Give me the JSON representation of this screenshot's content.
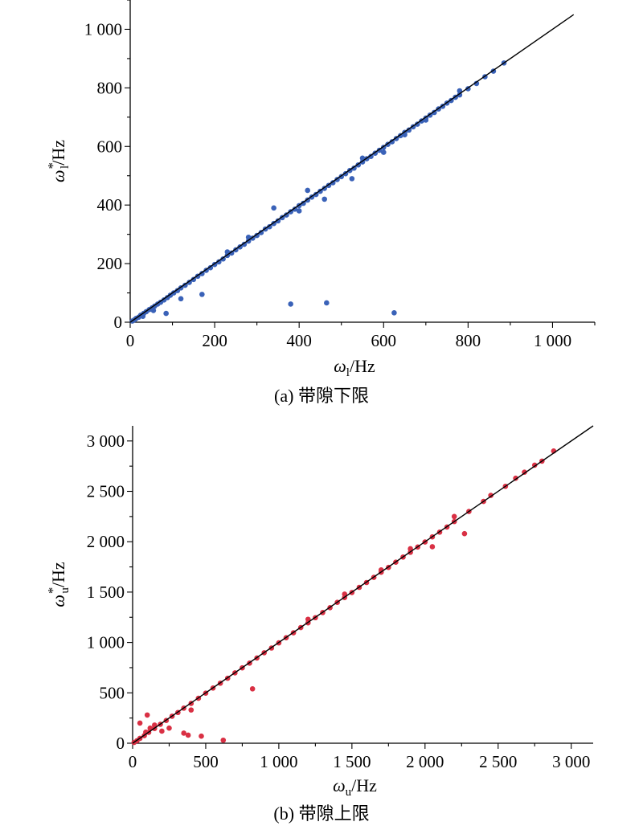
{
  "chart_data": [
    {
      "type": "scatter",
      "caption": "(a) 带隙下限",
      "xlabel": {
        "symbol": "ω",
        "sub": "l",
        "sup": "",
        "unit": "/Hz"
      },
      "ylabel": {
        "symbol": "ω",
        "sub": "l",
        "sup": "*",
        "unit": "/Hz"
      },
      "xlim": [
        0,
        1100
      ],
      "ylim": [
        0,
        1100
      ],
      "xticks": [
        0,
        200,
        400,
        600,
        800,
        1000
      ],
      "xtick_labels": [
        "0",
        "200",
        "400",
        "600",
        "800",
        "1 000"
      ],
      "yticks": [
        0,
        200,
        400,
        600,
        800,
        1000
      ],
      "ytick_labels": [
        "0",
        "200",
        "400",
        "600",
        "800",
        "1 000"
      ],
      "grid": false,
      "point_color": "#3a62b8",
      "fit_line": {
        "x": [
          0,
          1050
        ],
        "y": [
          0,
          1050
        ],
        "color": "#000000"
      },
      "points": [
        [
          5,
          4
        ],
        [
          10,
          8
        ],
        [
          14,
          13
        ],
        [
          20,
          17
        ],
        [
          25,
          24
        ],
        [
          32,
          30
        ],
        [
          38,
          36
        ],
        [
          45,
          43
        ],
        [
          52,
          49
        ],
        [
          58,
          55
        ],
        [
          65,
          62
        ],
        [
          72,
          68
        ],
        [
          80,
          76
        ],
        [
          88,
          84
        ],
        [
          95,
          92
        ],
        [
          103,
          100
        ],
        [
          112,
          108
        ],
        [
          120,
          117
        ],
        [
          130,
          126
        ],
        [
          140,
          136
        ],
        [
          150,
          146
        ],
        [
          160,
          157
        ],
        [
          170,
          166
        ],
        [
          180,
          177
        ],
        [
          190,
          186
        ],
        [
          200,
          197
        ],
        [
          210,
          206
        ],
        [
          220,
          216
        ],
        [
          230,
          228
        ],
        [
          240,
          236
        ],
        [
          250,
          247
        ],
        [
          260,
          257
        ],
        [
          270,
          266
        ],
        [
          280,
          277
        ],
        [
          290,
          287
        ],
        [
          300,
          296
        ],
        [
          310,
          306
        ],
        [
          320,
          318
        ],
        [
          330,
          326
        ],
        [
          340,
          337
        ],
        [
          350,
          346
        ],
        [
          360,
          357
        ],
        [
          370,
          366
        ],
        [
          380,
          377
        ],
        [
          390,
          386
        ],
        [
          400,
          398
        ],
        [
          410,
          406
        ],
        [
          420,
          417
        ],
        [
          430,
          427
        ],
        [
          440,
          436
        ],
        [
          450,
          447
        ],
        [
          460,
          457
        ],
        [
          470,
          467
        ],
        [
          480,
          476
        ],
        [
          490,
          487
        ],
        [
          500,
          497
        ],
        [
          510,
          507
        ],
        [
          520,
          518
        ],
        [
          530,
          526
        ],
        [
          540,
          537
        ],
        [
          550,
          547
        ],
        [
          560,
          558
        ],
        [
          570,
          566
        ],
        [
          580,
          577
        ],
        [
          590,
          587
        ],
        [
          600,
          597
        ],
        [
          610,
          607
        ],
        [
          620,
          616
        ],
        [
          630,
          627
        ],
        [
          640,
          637
        ],
        [
          650,
          648
        ],
        [
          660,
          656
        ],
        [
          670,
          667
        ],
        [
          680,
          676
        ],
        [
          690,
          687
        ],
        [
          700,
          697
        ],
        [
          710,
          707
        ],
        [
          720,
          716
        ],
        [
          730,
          728
        ],
        [
          740,
          737
        ],
        [
          750,
          748
        ],
        [
          760,
          757
        ],
        [
          770,
          768
        ],
        [
          780,
          776
        ],
        [
          800,
          797
        ],
        [
          820,
          815
        ],
        [
          840,
          838
        ],
        [
          860,
          857
        ],
        [
          885,
          885
        ],
        [
          30,
          20
        ],
        [
          55,
          40
        ],
        [
          85,
          30
        ],
        [
          120,
          80
        ],
        [
          170,
          95
        ],
        [
          380,
          62
        ],
        [
          465,
          66
        ],
        [
          625,
          32
        ],
        [
          460,
          420
        ],
        [
          525,
          490
        ],
        [
          340,
          390
        ],
        [
          600,
          580
        ],
        [
          230,
          240
        ],
        [
          700,
          690
        ],
        [
          280,
          290
        ],
        [
          420,
          450
        ],
        [
          550,
          560
        ],
        [
          650,
          640
        ],
        [
          780,
          790
        ],
        [
          400,
          380
        ]
      ]
    },
    {
      "type": "scatter",
      "caption": "(b) 带隙上限",
      "xlabel": {
        "symbol": "ω",
        "sub": "u",
        "sup": "",
        "unit": "/Hz"
      },
      "ylabel": {
        "symbol": "ω",
        "sub": "u",
        "sup": "*",
        "unit": "/Hz"
      },
      "xlim": [
        0,
        3150
      ],
      "ylim": [
        0,
        3150
      ],
      "xticks": [
        0,
        500,
        1000,
        1500,
        2000,
        2500,
        3000
      ],
      "xtick_labels": [
        "0",
        "500",
        "1 000",
        "1 500",
        "2 000",
        "2 500",
        "3 000"
      ],
      "yticks": [
        0,
        500,
        1000,
        1500,
        2000,
        2500,
        3000
      ],
      "ytick_labels": [
        "0",
        "500",
        "1 000",
        "1 500",
        "2 000",
        "2 500",
        "3 000"
      ],
      "grid": false,
      "point_color": "#d93044",
      "fit_line": {
        "x": [
          0,
          3150
        ],
        "y": [
          0,
          3150
        ],
        "color": "#000000"
      },
      "points": [
        [
          10,
          8
        ],
        [
          30,
          25
        ],
        [
          50,
          48
        ],
        [
          80,
          75
        ],
        [
          110,
          108
        ],
        [
          150,
          146
        ],
        [
          190,
          188
        ],
        [
          230,
          226
        ],
        [
          270,
          268
        ],
        [
          310,
          305
        ],
        [
          350,
          348
        ],
        [
          400,
          395
        ],
        [
          450,
          446
        ],
        [
          500,
          497
        ],
        [
          550,
          548
        ],
        [
          600,
          596
        ],
        [
          650,
          645
        ],
        [
          700,
          698
        ],
        [
          750,
          748
        ],
        [
          800,
          795
        ],
        [
          850,
          846
        ],
        [
          900,
          898
        ],
        [
          950,
          945
        ],
        [
          1000,
          996
        ],
        [
          1050,
          1047
        ],
        [
          1100,
          1096
        ],
        [
          1150,
          1148
        ],
        [
          1200,
          1195
        ],
        [
          1250,
          1246
        ],
        [
          1300,
          1297
        ],
        [
          1350,
          1345
        ],
        [
          1400,
          1398
        ],
        [
          1450,
          1446
        ],
        [
          1500,
          1496
        ],
        [
          1550,
          1547
        ],
        [
          1600,
          1595
        ],
        [
          1650,
          1646
        ],
        [
          1700,
          1697
        ],
        [
          1750,
          1745
        ],
        [
          1800,
          1797
        ],
        [
          1850,
          1848
        ],
        [
          1900,
          1895
        ],
        [
          1950,
          1947
        ],
        [
          2000,
          1997
        ],
        [
          2050,
          2048
        ],
        [
          2100,
          2095
        ],
        [
          2150,
          2146
        ],
        [
          2200,
          2200
        ],
        [
          2300,
          2300
        ],
        [
          2400,
          2400
        ],
        [
          2450,
          2460
        ],
        [
          2550,
          2550
        ],
        [
          2620,
          2630
        ],
        [
          2680,
          2690
        ],
        [
          2750,
          2760
        ],
        [
          2800,
          2800
        ],
        [
          2880,
          2900
        ],
        [
          50,
          200
        ],
        [
          100,
          280
        ],
        [
          150,
          180
        ],
        [
          200,
          120
        ],
        [
          350,
          100
        ],
        [
          380,
          80
        ],
        [
          470,
          70
        ],
        [
          620,
          30
        ],
        [
          820,
          540
        ],
        [
          2050,
          1950
        ],
        [
          2270,
          2080
        ],
        [
          120,
          150
        ],
        [
          250,
          150
        ],
        [
          90,
          110
        ],
        [
          400,
          330
        ],
        [
          1450,
          1480
        ],
        [
          1700,
          1720
        ],
        [
          1900,
          1930
        ],
        [
          2200,
          2250
        ],
        [
          1200,
          1230
        ]
      ]
    }
  ]
}
